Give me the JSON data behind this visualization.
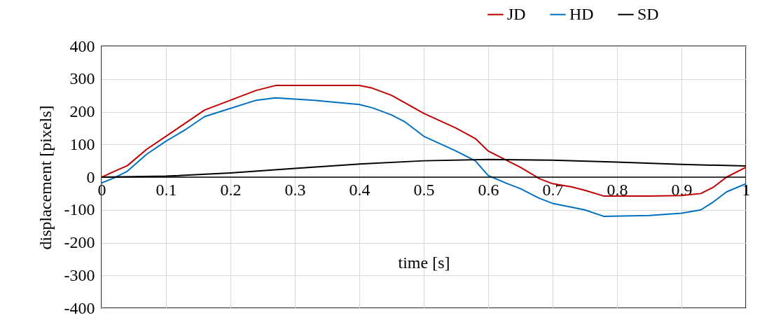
{
  "chart_data": {
    "type": "line",
    "xlabel": "time [s]",
    "ylabel": "displacement [pixels]",
    "xlim": [
      0,
      1
    ],
    "xticks": [
      0,
      0.1,
      0.2,
      0.3,
      0.4,
      0.5,
      0.6,
      0.7,
      0.8,
      0.9,
      1
    ],
    "ylim": [
      -400,
      400
    ],
    "yticks": [
      -400,
      -300,
      -200,
      -100,
      0,
      100,
      200,
      300,
      400
    ],
    "grid": true,
    "legend": "top right",
    "marker": "none",
    "line_style": "solid",
    "series": [
      {
        "name": "JD",
        "color": "#c00000",
        "x": [
          0,
          0.02,
          0.04,
          0.07,
          0.1,
          0.13,
          0.16,
          0.2,
          0.24,
          0.27,
          0.33,
          0.4,
          0.42,
          0.45,
          0.47,
          0.5,
          0.55,
          0.58,
          0.6,
          0.63,
          0.65,
          0.68,
          0.7,
          0.73,
          0.75,
          0.78,
          0.85,
          0.9,
          0.93,
          0.95,
          0.97,
          1
        ],
        "values": [
          0,
          18,
          35,
          85,
          125,
          165,
          205,
          235,
          265,
          280,
          280,
          280,
          272,
          250,
          228,
          195,
          150,
          118,
          80,
          50,
          30,
          -5,
          -20,
          -30,
          -40,
          -58,
          -58,
          -56,
          -50,
          -30,
          0,
          30
        ]
      },
      {
        "name": "HD",
        "color": "#0070c0",
        "x": [
          0,
          0.02,
          0.04,
          0.07,
          0.1,
          0.13,
          0.16,
          0.2,
          0.24,
          0.27,
          0.33,
          0.4,
          0.42,
          0.45,
          0.47,
          0.5,
          0.55,
          0.58,
          0.6,
          0.63,
          0.65,
          0.68,
          0.7,
          0.73,
          0.75,
          0.78,
          0.85,
          0.9,
          0.93,
          0.95,
          0.97,
          1
        ],
        "values": [
          -18,
          -2,
          18,
          70,
          110,
          145,
          185,
          210,
          235,
          242,
          235,
          222,
          212,
          190,
          170,
          125,
          80,
          50,
          5,
          -20,
          -35,
          -65,
          -80,
          -92,
          -100,
          -120,
          -117,
          -110,
          -100,
          -75,
          -45,
          -20
        ]
      },
      {
        "name": "SD",
        "color": "#000000",
        "x": [
          0,
          0.1,
          0.2,
          0.3,
          0.4,
          0.5,
          0.6,
          0.7,
          0.8,
          0.9,
          1
        ],
        "values": [
          0,
          3,
          13,
          27,
          40,
          50,
          54,
          52,
          46,
          39,
          34
        ]
      }
    ]
  }
}
